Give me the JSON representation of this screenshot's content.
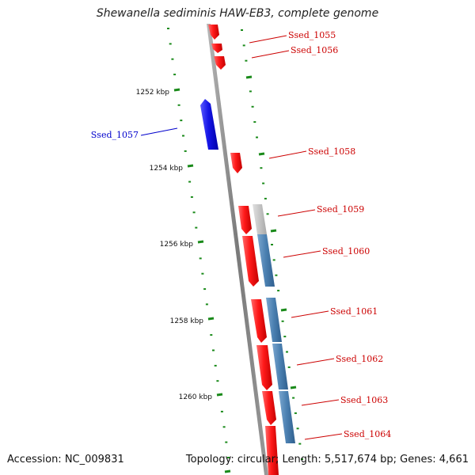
{
  "title": "Shewanella sediminis HAW-EB3, complete genome",
  "accession": "Accession: NC_009831",
  "topology": "Topology: circular; Length: 5,517,674 bp; Genes: 4,661",
  "colors": {
    "backbone": "#8a8a8a",
    "forward_gene": "#ff1a1a",
    "reverse_gene": "#1010e0",
    "rna_track": "#4a7fb0",
    "rna_track_light": "#c0c0c0",
    "tick": "#1a8a1a",
    "label_forward": "#cc0000",
    "label_reverse": "#0000cc"
  },
  "ticks": [
    {
      "label": "1252 kbp"
    },
    {
      "label": "1254 kbp"
    },
    {
      "label": "1256 kbp"
    },
    {
      "label": "1258 kbp"
    },
    {
      "label": "1260 kbp"
    }
  ],
  "genes": [
    {
      "name": "Ssed_1055",
      "strand": "+"
    },
    {
      "name": "Ssed_1056",
      "strand": "+"
    },
    {
      "name": "Ssed_1057",
      "strand": "-"
    },
    {
      "name": "Ssed_1058",
      "strand": "+"
    },
    {
      "name": "Ssed_1059",
      "strand": "+"
    },
    {
      "name": "Ssed_1060",
      "strand": "+"
    },
    {
      "name": "Ssed_1061",
      "strand": "+"
    },
    {
      "name": "Ssed_1062",
      "strand": "+"
    },
    {
      "name": "Ssed_1063",
      "strand": "+"
    },
    {
      "name": "Ssed_1064",
      "strand": "+"
    }
  ]
}
